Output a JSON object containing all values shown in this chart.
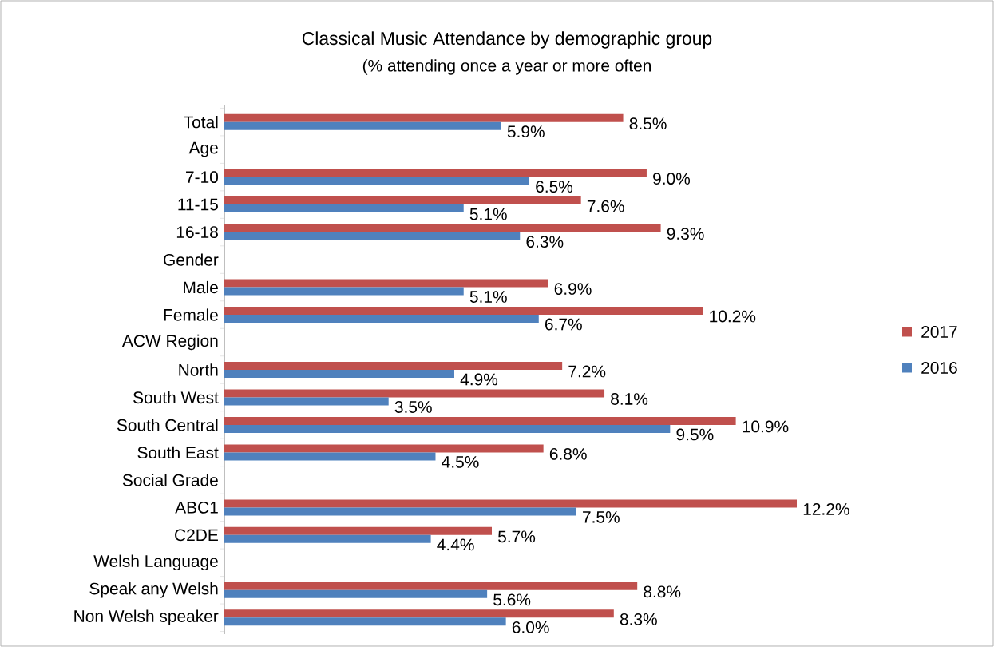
{
  "chart_data": {
    "type": "bar",
    "orientation": "horizontal",
    "title": "Classical Music Attendance by demographic group",
    "subtitle": "(% attending once a year or more often",
    "categories": [
      "Total",
      "Age",
      "7-10",
      "11-15",
      "16-18",
      "Gender",
      "Male",
      "Female",
      "ACW Region",
      "North",
      "South West",
      "South Central",
      "South East",
      "Social Grade",
      "ABC1",
      "C2DE",
      "Welsh Language",
      "Speak any Welsh",
      "Non Welsh speaker"
    ],
    "series": [
      {
        "name": "2017",
        "color": "#c0504d",
        "values": [
          8.5,
          null,
          9.0,
          7.6,
          9.3,
          null,
          6.9,
          10.2,
          null,
          7.2,
          8.1,
          10.9,
          6.8,
          null,
          12.2,
          5.7,
          null,
          8.8,
          8.3
        ],
        "value_labels": [
          "8.5%",
          null,
          "9.0%",
          "7.6%",
          "9.3%",
          null,
          "6.9%",
          "10.2%",
          null,
          "7.2%",
          "8.1%",
          "10.9%",
          "6.8%",
          null,
          "12.2%",
          "5.7%",
          null,
          "8.8%",
          "8.3%"
        ]
      },
      {
        "name": "2016",
        "color": "#4f81bd",
        "values": [
          5.9,
          null,
          6.5,
          5.1,
          6.3,
          null,
          5.1,
          6.7,
          null,
          4.9,
          3.5,
          9.5,
          4.5,
          null,
          7.5,
          4.4,
          null,
          5.6,
          6.0
        ],
        "value_labels": [
          "5.9%",
          null,
          "6.5%",
          "5.1%",
          "6.3%",
          null,
          "5.1%",
          "6.7%",
          null,
          "4.9%",
          "3.5%",
          "9.5%",
          "4.5%",
          null,
          "7.5%",
          "4.4%",
          null,
          "5.6%",
          "6.0%"
        ]
      }
    ],
    "legend": "right",
    "tick_labels": "y"
  }
}
